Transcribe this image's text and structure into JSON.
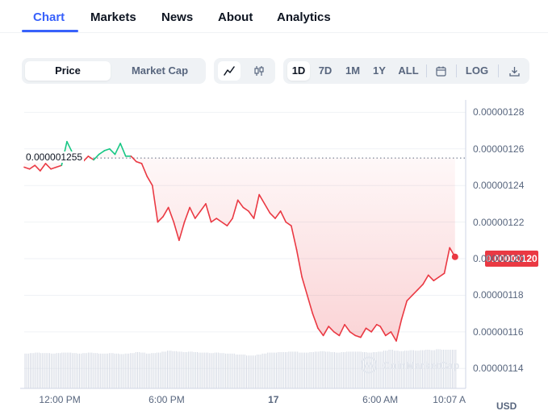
{
  "tabs": [
    {
      "label": "Chart",
      "active": true
    },
    {
      "label": "Markets",
      "active": false
    },
    {
      "label": "News",
      "active": false
    },
    {
      "label": "About",
      "active": false
    },
    {
      "label": "Analytics",
      "active": false
    }
  ],
  "controls": {
    "type_toggle": [
      "Price",
      "Market Cap"
    ],
    "selected_type": "Price",
    "chart_style_icons": [
      "line-chart-icon",
      "candlestick-icon"
    ],
    "ranges": [
      "1D",
      "7D",
      "1M",
      "1Y",
      "ALL"
    ],
    "selected_range": "1D",
    "calendar_icon": "calendar-icon",
    "log_label": "LOG",
    "download_icon": "download-icon"
  },
  "colors": {
    "accent": "#3861fb",
    "up": "#16c784",
    "down": "#ea3943",
    "muted": "#58667e"
  },
  "chart_data": {
    "type": "line",
    "currency": "USD",
    "reference_price_label": "0.000001255",
    "reference_price": 1.255e-06,
    "current_price_label": "0.00000120",
    "current_price": 1.2e-06,
    "ylim": [
      1.13e-06,
      1.285e-06
    ],
    "y_ticks": [
      "0.00000128",
      "0.00000126",
      "0.00000124",
      "0.00000122",
      "0.00000120",
      "0.00000118",
      "0.00000116",
      "0.00000114"
    ],
    "y_tick_values": [
      1.28e-06,
      1.26e-06,
      1.24e-06,
      1.22e-06,
      1.2e-06,
      1.18e-06,
      1.16e-06,
      1.14e-06
    ],
    "x_ticks": [
      "12:00 PM",
      "6:00 PM",
      "17",
      "6:00 AM",
      "10:07 A"
    ],
    "x_tick_hours": [
      2,
      8,
      14,
      20,
      24.1
    ],
    "x_range_hours": [
      0,
      24.3
    ],
    "series": [
      {
        "hours": [
          0.0,
          0.3,
          0.6,
          0.9,
          1.2,
          1.5,
          1.8,
          2.1,
          2.4,
          2.7,
          3.0,
          3.3,
          3.6,
          3.9,
          4.2,
          4.5,
          4.8,
          5.1,
          5.4,
          5.7,
          6.0,
          6.3,
          6.6,
          6.9,
          7.2,
          7.5,
          7.8,
          8.1,
          8.4,
          8.7,
          9.0,
          9.3,
          9.6,
          9.9,
          10.2,
          10.5,
          10.8,
          11.1,
          11.4,
          11.7,
          12.0,
          12.3,
          12.6,
          12.9,
          13.2,
          13.5,
          13.8,
          14.1,
          14.4,
          14.7,
          15.0,
          15.3,
          15.6,
          15.9,
          16.2,
          16.5,
          16.8,
          17.1,
          17.4,
          17.7,
          18.0,
          18.3,
          18.6,
          18.9,
          19.2,
          19.5,
          19.8,
          20.0,
          20.3,
          20.6,
          20.9,
          21.2,
          21.5,
          21.8,
          22.1,
          22.4,
          22.7,
          23.0,
          23.3,
          23.6,
          23.9,
          24.2
        ],
        "values": [
          1.25e-06,
          1.249e-06,
          1.251e-06,
          1.248e-06,
          1.252e-06,
          1.249e-06,
          1.25e-06,
          1.251e-06,
          1.264e-06,
          1.258e-06,
          1.255e-06,
          1.253e-06,
          1.256e-06,
          1.254e-06,
          1.257e-06,
          1.259e-06,
          1.26e-06,
          1.257e-06,
          1.263e-06,
          1.256e-06,
          1.256e-06,
          1.253e-06,
          1.252e-06,
          1.245e-06,
          1.24e-06,
          1.22e-06,
          1.223e-06,
          1.228e-06,
          1.22e-06,
          1.21e-06,
          1.22e-06,
          1.228e-06,
          1.222e-06,
          1.226e-06,
          1.23e-06,
          1.22e-06,
          1.222e-06,
          1.22e-06,
          1.218e-06,
          1.222e-06,
          1.232e-06,
          1.228e-06,
          1.226e-06,
          1.222e-06,
          1.235e-06,
          1.23e-06,
          1.225e-06,
          1.222e-06,
          1.226e-06,
          1.22e-06,
          1.218e-06,
          1.205e-06,
          1.19e-06,
          1.18e-06,
          1.17e-06,
          1.162e-06,
          1.158e-06,
          1.163e-06,
          1.16e-06,
          1.158e-06,
          1.164e-06,
          1.16e-06,
          1.158e-06,
          1.157e-06,
          1.162e-06,
          1.16e-06,
          1.164e-06,
          1.163e-06,
          1.158e-06,
          1.16e-06,
          1.155e-06,
          1.167e-06,
          1.177e-06,
          1.18e-06,
          1.183e-06,
          1.186e-06,
          1.191e-06,
          1.188e-06,
          1.19e-06,
          1.192e-06,
          1.206e-06,
          1.201e-06
        ]
      }
    ],
    "volume_relative": [
      0.72,
      0.73,
      0.74,
      0.73,
      0.73,
      0.72,
      0.73,
      0.74,
      0.74,
      0.73,
      0.72,
      0.73,
      0.74,
      0.73,
      0.72,
      0.72,
      0.73,
      0.72,
      0.71,
      0.72,
      0.73,
      0.75,
      0.74,
      0.72,
      0.73,
      0.74,
      0.76,
      0.78,
      0.77,
      0.76,
      0.75,
      0.76,
      0.75,
      0.74,
      0.74,
      0.73,
      0.74,
      0.73,
      0.72,
      0.72,
      0.7,
      0.7,
      0.68,
      0.68,
      0.7,
      0.72,
      0.74,
      0.74,
      0.75,
      0.75,
      0.76,
      0.76,
      0.74,
      0.74,
      0.75,
      0.76,
      0.77,
      0.76,
      0.75,
      0.74,
      0.75,
      0.76,
      0.76,
      0.76,
      0.75,
      0.74,
      0.75,
      0.76,
      0.78,
      0.8,
      0.78,
      0.77,
      0.78,
      0.79,
      0.78,
      0.79,
      0.8,
      0.79,
      0.81,
      0.8,
      0.8,
      0.8
    ],
    "watermark": "CoinMarketCap"
  }
}
